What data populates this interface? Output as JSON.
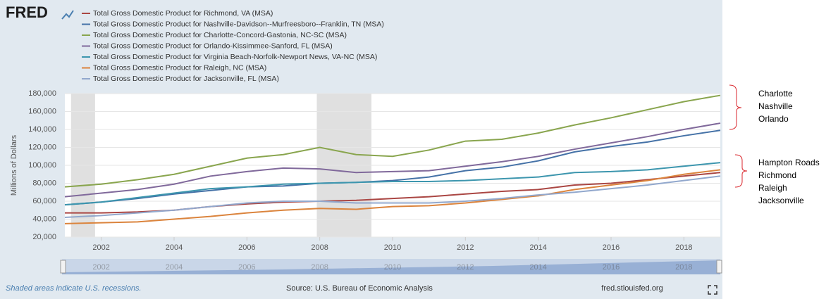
{
  "chart_data": {
    "type": "line",
    "logo": "FRED",
    "y_label": "Millions of Dollars",
    "x": [
      2001,
      2002,
      2003,
      2004,
      2005,
      2006,
      2007,
      2008,
      2009,
      2010,
      2011,
      2012,
      2013,
      2014,
      2015,
      2016,
      2017,
      2018,
      2019
    ],
    "series": [
      {
        "name": "Total Gross Domestic Product for Richmond, VA (MSA)",
        "color": "#aa4643",
        "values": [
          47000,
          47000,
          48000,
          50000,
          54000,
          57000,
          59000,
          60000,
          61000,
          63000,
          65000,
          68000,
          71000,
          73000,
          78000,
          80000,
          84000,
          88000,
          92000
        ]
      },
      {
        "name": "Total Gross Domestic Product for Nashville-Davidson--Murfreesboro--Franklin, TN (MSA)",
        "color": "#4572a7",
        "values": [
          56000,
          59000,
          63000,
          68000,
          72000,
          76000,
          77000,
          80000,
          81000,
          83000,
          87000,
          94000,
          98000,
          105000,
          115000,
          121000,
          126000,
          133000,
          139000
        ]
      },
      {
        "name": "Total Gross Domestic Product for Charlotte-Concord-Gastonia, NC-SC (MSA)",
        "color": "#89a54e",
        "values": [
          76000,
          79000,
          84000,
          90000,
          99000,
          108000,
          112000,
          120000,
          112000,
          110000,
          117000,
          127000,
          129000,
          136000,
          145000,
          153000,
          162000,
          171000,
          178000
        ]
      },
      {
        "name": "Total Gross Domestic Product for Orlando-Kissimmee-Sanford, FL (MSA)",
        "color": "#80699b",
        "values": [
          65000,
          69000,
          73000,
          79000,
          88000,
          93000,
          97000,
          96000,
          92000,
          93000,
          94000,
          99000,
          104000,
          110000,
          118000,
          125000,
          132000,
          140000,
          147000
        ]
      },
      {
        "name": "Total Gross Domestic Product for Virginia Beach-Norfolk-Newport News, VA-NC (MSA)",
        "color": "#3d96ae",
        "values": [
          56000,
          59000,
          64000,
          69000,
          74000,
          76000,
          79000,
          80000,
          81000,
          82000,
          82000,
          83000,
          85000,
          87000,
          92000,
          93000,
          95000,
          99000,
          103000
        ]
      },
      {
        "name": "Total Gross Domestic Product for Raleigh, NC (MSA)",
        "color": "#db843d",
        "values": [
          35000,
          36000,
          37000,
          40000,
          43000,
          47000,
          50000,
          52000,
          51000,
          54000,
          55000,
          58000,
          62000,
          66000,
          73000,
          78000,
          83000,
          90000,
          95000
        ]
      },
      {
        "name": "Total Gross Domestic Product for Jacksonville, FL (MSA)",
        "color": "#92a8cd",
        "values": [
          42000,
          44000,
          47000,
          50000,
          54000,
          58000,
          60000,
          60000,
          58000,
          58000,
          58000,
          60000,
          63000,
          67000,
          70000,
          74000,
          78000,
          83000,
          88000
        ]
      }
    ],
    "recessions": [
      [
        2001.17,
        2001.83
      ],
      [
        2007.92,
        2009.42
      ]
    ],
    "xlim": [
      2001,
      2019
    ],
    "xticks": [
      2002,
      2004,
      2006,
      2008,
      2010,
      2012,
      2014,
      2016,
      2018
    ],
    "ylim": [
      20000,
      180000
    ],
    "yticks": [
      {
        "value": 20000,
        "label": "20,000"
      },
      {
        "value": 40000,
        "label": "40,000"
      },
      {
        "value": 60000,
        "label": "60,000"
      },
      {
        "value": 80000,
        "label": "80,000"
      },
      {
        "value": 100000,
        "label": "100,000"
      },
      {
        "value": 120000,
        "label": "120,000"
      },
      {
        "value": 140000,
        "label": "140,000"
      },
      {
        "value": 160000,
        "label": "160,000"
      },
      {
        "value": 180000,
        "label": "180,000"
      }
    ],
    "grid": true,
    "recession_note": "Shaded areas indicate U.S. recessions.",
    "source": "Source: U.S. Bureau of Economic Analysis",
    "site": "fred.stlouisfed.org",
    "annotations": [
      {
        "labels": [
          "Charlotte",
          "Nashville",
          "Orlando"
        ]
      },
      {
        "labels": [
          "Hampton Roads",
          "Richmond",
          "Raleigh",
          "Jacksonville"
        ]
      }
    ]
  }
}
